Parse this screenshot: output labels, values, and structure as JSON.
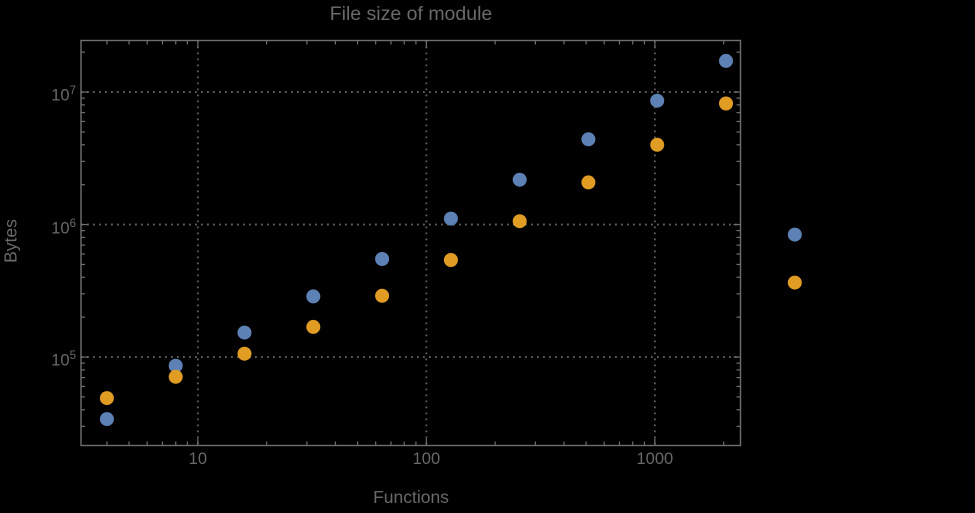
{
  "chart_data": {
    "type": "scatter",
    "title": "File size of module",
    "xlabel": "Functions",
    "ylabel": "Bytes",
    "x_scale": "log",
    "y_scale": "log",
    "x_range": [
      3.08,
      2370
    ],
    "y_range": [
      21500,
      24500000
    ],
    "grid": true,
    "grid_style": "dotted",
    "legend": "none",
    "frame": true,
    "x_ticks": [
      {
        "value": 10,
        "label": "10"
      },
      {
        "value": 100,
        "label": "100"
      },
      {
        "value": 1000,
        "label": "1000"
      }
    ],
    "y_ticks": [
      {
        "value": 100000,
        "base": "10",
        "exp": "5"
      },
      {
        "value": 1000000,
        "base": "10",
        "exp": "6"
      },
      {
        "value": 10000000,
        "base": "10",
        "exp": "7"
      }
    ],
    "series": [
      {
        "name": "blue-series",
        "color": "#5E81B5",
        "marker": "circle",
        "points": [
          [
            4,
            34000
          ],
          [
            8,
            86000
          ],
          [
            16,
            153000
          ],
          [
            32,
            287000
          ],
          [
            64,
            550000
          ],
          [
            128,
            1110000
          ],
          [
            256,
            2180000
          ],
          [
            512,
            4400000
          ],
          [
            1024,
            8600000
          ],
          [
            2048,
            17200000
          ],
          [
            4096,
            840000
          ]
        ]
      },
      {
        "name": "orange-series",
        "color": "#E19C24",
        "marker": "circle",
        "points": [
          [
            4,
            49000
          ],
          [
            8,
            71000
          ],
          [
            16,
            106000
          ],
          [
            32,
            169000
          ],
          [
            64,
            290000
          ],
          [
            128,
            540000
          ],
          [
            256,
            1060000
          ],
          [
            512,
            2080000
          ],
          [
            1024,
            4000000
          ],
          [
            2048,
            8200000
          ],
          [
            4096,
            365000
          ]
        ]
      }
    ]
  },
  "colors": {
    "background": "#000000",
    "frame": "#6f6f6f",
    "gridline": "#616161",
    "text": "#696969"
  }
}
